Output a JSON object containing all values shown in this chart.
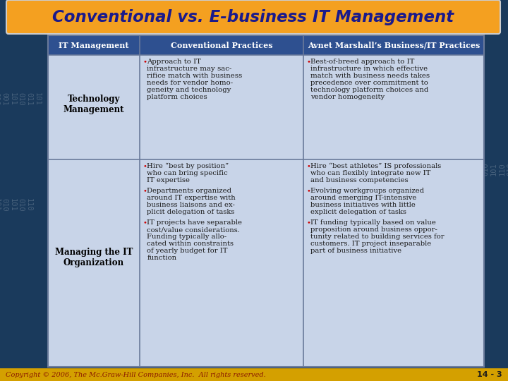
{
  "title": "Conventional vs. E-business IT Management",
  "title_bg_top": "#FFD966",
  "title_bg_bottom": "#F4A020",
  "title_color": "#1a1a8c",
  "background_color": "#1a3a5c",
  "table_bg": "#c8d4e8",
  "header_bg": "#2e5090",
  "header_text_color": "#ffffff",
  "border_color": "#6a7a9a",
  "col1_header": "IT Management",
  "col2_header": "Conventional Practices",
  "col3_header": "Avnet Marshall’s Business/IT Practices",
  "row1_col1": "Technology\nManagement",
  "row1_col2_lines": [
    "• Approach to IT",
    "  infrastructure may sac-",
    "  rifice match with business",
    "  needs for vendor homo-",
    "  geneity and technology",
    "  platform choices"
  ],
  "row1_col3_lines": [
    "• Best-of-breed approach to IT",
    "  infrastructure in which effective",
    "  match with business needs takes",
    "  precedence over commitment to",
    "  technology platform choices and",
    "  vendor homogeneity"
  ],
  "row2_col1": "Managing the IT\nOrganization",
  "row2_col2_lines": [
    "• Hire “best by position”",
    "  who can bring specific",
    "  IT expertise",
    "",
    "• Departments organized",
    "  around IT expertise with",
    "  business liaisons and ex-",
    "  plicit delegation of tasks",
    "",
    "• IT projects have separable",
    "  cost/value considerations.",
    "  Funding typically allo-",
    "  cated within constraints",
    "  of yearly budget for IT",
    "  function"
  ],
  "row2_col3_lines": [
    "• Hire “best athletes” IS professionals",
    "  who can flexibly integrate new IT",
    "  and business competencies",
    "",
    "• Evolving workgroups organized",
    "  around emerging IT-intensive",
    "  business initiatives with little",
    "  explicit delegation of tasks",
    "",
    "• IT funding typically based on value",
    "  proposition around business oppor-",
    "  tunity related to building services for",
    "  customers. IT project inseparable",
    "  part of business initiative"
  ],
  "footer_text": "Copyright © 2006, The Mc.Graw-Hill Companies, Inc.  All rights reserved.",
  "footer_right": "14 - 3",
  "footer_bg": "#D4A000",
  "footer_text_color": "#8b1a00",
  "bullet_color": "#cc0000",
  "cell_text_color": "#1a1a1a",
  "row1_col1_bold": true,
  "row2_col1_bold": true
}
